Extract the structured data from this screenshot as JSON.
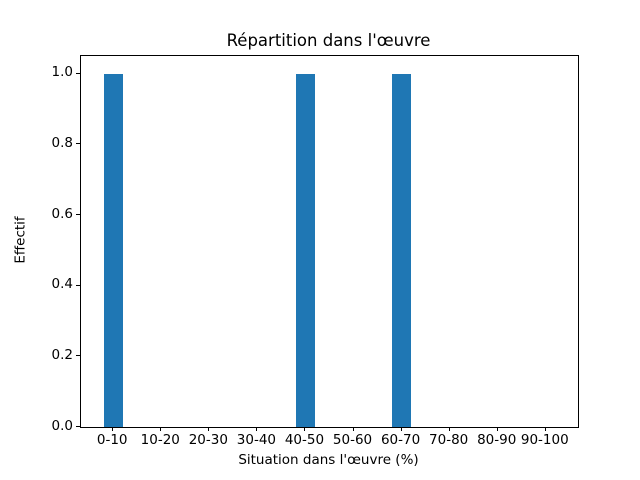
{
  "chart_data": {
    "type": "bar",
    "title": "Répartition dans l'œuvre",
    "xlabel": "Situation dans l'œuvre (%)",
    "ylabel": "Effectif",
    "categories": [
      "0-10",
      "10-20",
      "20-30",
      "30-40",
      "40-50",
      "50-60",
      "60-70",
      "70-80",
      "80-90",
      "90-100"
    ],
    "values": [
      1,
      0,
      0,
      0,
      1,
      0,
      1,
      0,
      0,
      0
    ],
    "yticks": [
      0.0,
      0.2,
      0.4,
      0.6,
      0.8,
      1.0
    ],
    "ytick_labels": [
      "0.0",
      "0.2",
      "0.4",
      "0.6",
      "0.8",
      "1.0"
    ],
    "ylim": [
      0,
      1.05
    ],
    "xlim": [
      -0.67,
      9.67
    ],
    "bar_width": 0.4,
    "bar_color": "#1f77b4",
    "background_color": "#ffffff",
    "axis_color": "#000000",
    "grid": false,
    "legend": null
  }
}
